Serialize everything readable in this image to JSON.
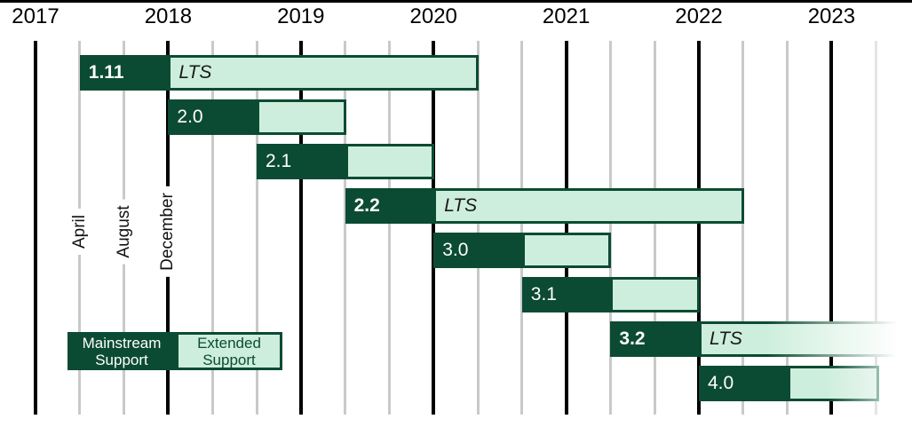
{
  "page": {
    "background": "#FFFFFF"
  },
  "colors": {
    "mainstream_green": "#0C4B33",
    "extended_green": "#CDEEDC",
    "grid_minor": "#C9C9C9",
    "grid_major": "#000000",
    "text": "#000000"
  },
  "legend": {
    "mainstream": [
      "Mainstream",
      "Support"
    ],
    "extended": [
      "Extended",
      "Support"
    ]
  },
  "chart_data": {
    "type": "bar",
    "subtype": "gantt-release-support-timeline",
    "title": "",
    "lts_label": "LTS",
    "legend_entries": [
      "Mainstream Support",
      "Extended Support"
    ],
    "x_axis": {
      "year_ticks": [
        "2017",
        "2018",
        "2019",
        "2020",
        "2021",
        "2022",
        "2023"
      ],
      "minor_tick_months": [
        "April",
        "August",
        "December"
      ],
      "grid": true
    },
    "bars": [
      {
        "version": "1.11",
        "lts": true,
        "mainstream_start": "2017-04",
        "extended_start": "2017-12",
        "support_end": "2020-04",
        "fades_out": false
      },
      {
        "version": "2.0",
        "lts": false,
        "mainstream_start": "2017-12",
        "extended_start": "2018-08",
        "support_end": "2019-04",
        "fades_out": false
      },
      {
        "version": "2.1",
        "lts": false,
        "mainstream_start": "2018-08",
        "extended_start": "2019-04",
        "support_end": "2019-12",
        "fades_out": false
      },
      {
        "version": "2.2",
        "lts": true,
        "mainstream_start": "2019-04",
        "extended_start": "2019-12",
        "support_end": "2022-04",
        "fades_out": false
      },
      {
        "version": "3.0",
        "lts": false,
        "mainstream_start": "2019-12",
        "extended_start": "2020-08",
        "support_end": "2021-04",
        "fades_out": false
      },
      {
        "version": "3.1",
        "lts": false,
        "mainstream_start": "2020-08",
        "extended_start": "2021-04",
        "support_end": "2021-12",
        "fades_out": false
      },
      {
        "version": "3.2",
        "lts": true,
        "mainstream_start": "2021-04",
        "extended_start": "2021-12",
        "support_end": null,
        "fades_out": true
      },
      {
        "version": "4.0",
        "lts": false,
        "mainstream_start": "2021-12",
        "extended_start": "2022-08",
        "support_end": "2023-04",
        "fades_out": true
      }
    ]
  }
}
